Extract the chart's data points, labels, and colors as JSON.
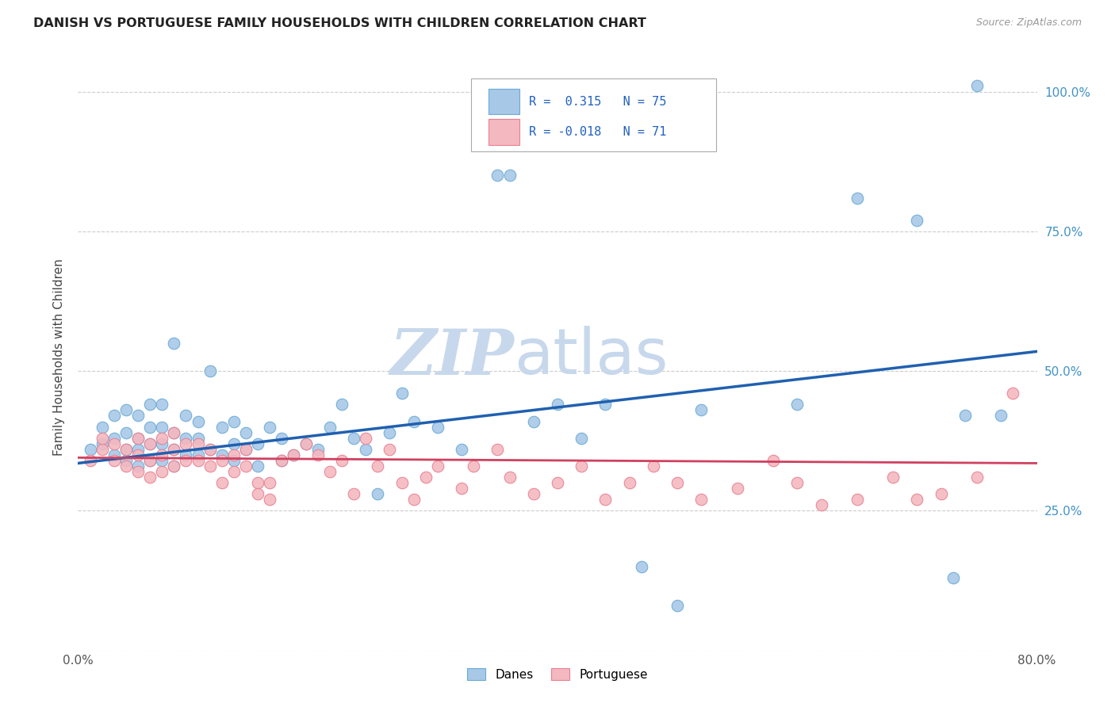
{
  "title": "DANISH VS PORTUGUESE FAMILY HOUSEHOLDS WITH CHILDREN CORRELATION CHART",
  "source": "Source: ZipAtlas.com",
  "xlabel_label": "Danes",
  "xlabel2_label": "Portuguese",
  "ylabel": "Family Households with Children",
  "xlim": [
    0.0,
    0.8
  ],
  "ylim": [
    0.0,
    1.05
  ],
  "x_ticks": [
    0.0,
    0.1,
    0.2,
    0.3,
    0.4,
    0.5,
    0.6,
    0.7,
    0.8
  ],
  "x_tick_labels": [
    "0.0%",
    "",
    "",
    "",
    "",
    "",
    "",
    "",
    "80.0%"
  ],
  "y_ticks": [
    0.0,
    0.25,
    0.5,
    0.75,
    1.0
  ],
  "y_tick_labels_right": [
    "",
    "25.0%",
    "50.0%",
    "75.0%",
    "100.0%"
  ],
  "danish_color": "#a8c8e8",
  "danish_edge": "#6aaad4",
  "portuguese_color": "#f4b8c0",
  "portuguese_edge": "#e88090",
  "line_danish_color": "#2060b0",
  "line_portuguese_color": "#d04060",
  "grid_color": "#cccccc",
  "watermark_zip": "ZIP",
  "watermark_atlas": "atlas",
  "watermark_color": "#c8d8ec",
  "legend_R_danish": "0.315",
  "legend_N_danish": "75",
  "legend_R_portuguese": "-0.018",
  "legend_N_portuguese": "71",
  "danish_x": [
    0.01,
    0.02,
    0.02,
    0.03,
    0.03,
    0.03,
    0.04,
    0.04,
    0.04,
    0.04,
    0.05,
    0.05,
    0.05,
    0.05,
    0.06,
    0.06,
    0.06,
    0.06,
    0.07,
    0.07,
    0.07,
    0.07,
    0.08,
    0.08,
    0.08,
    0.08,
    0.09,
    0.09,
    0.09,
    0.1,
    0.1,
    0.1,
    0.11,
    0.11,
    0.12,
    0.12,
    0.13,
    0.13,
    0.13,
    0.14,
    0.14,
    0.15,
    0.15,
    0.16,
    0.17,
    0.17,
    0.18,
    0.19,
    0.2,
    0.21,
    0.22,
    0.23,
    0.24,
    0.25,
    0.26,
    0.27,
    0.28,
    0.3,
    0.32,
    0.35,
    0.36,
    0.38,
    0.4,
    0.42,
    0.44,
    0.47,
    0.5,
    0.52,
    0.6,
    0.65,
    0.7,
    0.73,
    0.74,
    0.75,
    0.77
  ],
  "danish_y": [
    0.36,
    0.37,
    0.4,
    0.35,
    0.38,
    0.42,
    0.34,
    0.36,
    0.39,
    0.43,
    0.33,
    0.36,
    0.38,
    0.42,
    0.34,
    0.37,
    0.4,
    0.44,
    0.34,
    0.37,
    0.4,
    0.44,
    0.33,
    0.36,
    0.39,
    0.55,
    0.35,
    0.38,
    0.42,
    0.35,
    0.38,
    0.41,
    0.36,
    0.5,
    0.35,
    0.4,
    0.34,
    0.37,
    0.41,
    0.36,
    0.39,
    0.33,
    0.37,
    0.4,
    0.34,
    0.38,
    0.35,
    0.37,
    0.36,
    0.4,
    0.44,
    0.38,
    0.36,
    0.28,
    0.39,
    0.46,
    0.41,
    0.4,
    0.36,
    0.85,
    0.85,
    0.41,
    0.44,
    0.38,
    0.44,
    0.15,
    0.08,
    0.43,
    0.44,
    0.81,
    0.77,
    0.13,
    0.42,
    1.01,
    0.42
  ],
  "portuguese_x": [
    0.01,
    0.02,
    0.02,
    0.03,
    0.03,
    0.04,
    0.04,
    0.05,
    0.05,
    0.05,
    0.06,
    0.06,
    0.06,
    0.07,
    0.07,
    0.07,
    0.08,
    0.08,
    0.08,
    0.09,
    0.09,
    0.1,
    0.1,
    0.11,
    0.11,
    0.12,
    0.12,
    0.13,
    0.13,
    0.14,
    0.14,
    0.15,
    0.15,
    0.16,
    0.16,
    0.17,
    0.18,
    0.19,
    0.2,
    0.21,
    0.22,
    0.23,
    0.24,
    0.25,
    0.26,
    0.27,
    0.28,
    0.29,
    0.3,
    0.32,
    0.33,
    0.35,
    0.36,
    0.38,
    0.4,
    0.42,
    0.44,
    0.46,
    0.48,
    0.5,
    0.52,
    0.55,
    0.58,
    0.6,
    0.62,
    0.65,
    0.68,
    0.7,
    0.72,
    0.75,
    0.78
  ],
  "portuguese_y": [
    0.34,
    0.36,
    0.38,
    0.34,
    0.37,
    0.33,
    0.36,
    0.32,
    0.35,
    0.38,
    0.34,
    0.37,
    0.31,
    0.35,
    0.38,
    0.32,
    0.33,
    0.36,
    0.39,
    0.34,
    0.37,
    0.34,
    0.37,
    0.33,
    0.36,
    0.3,
    0.34,
    0.32,
    0.35,
    0.33,
    0.36,
    0.3,
    0.28,
    0.27,
    0.3,
    0.34,
    0.35,
    0.37,
    0.35,
    0.32,
    0.34,
    0.28,
    0.38,
    0.33,
    0.36,
    0.3,
    0.27,
    0.31,
    0.33,
    0.29,
    0.33,
    0.36,
    0.31,
    0.28,
    0.3,
    0.33,
    0.27,
    0.3,
    0.33,
    0.3,
    0.27,
    0.29,
    0.34,
    0.3,
    0.26,
    0.27,
    0.31,
    0.27,
    0.28,
    0.31,
    0.46
  ],
  "danish_line_x0": 0.0,
  "danish_line_x1": 0.8,
  "danish_line_y0": 0.335,
  "danish_line_y1": 0.535,
  "portuguese_line_x0": 0.0,
  "portuguese_line_x1": 0.8,
  "portuguese_line_y0": 0.345,
  "portuguese_line_y1": 0.335
}
